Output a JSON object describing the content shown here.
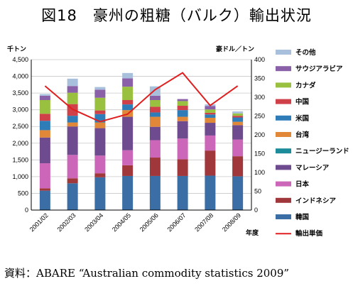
{
  "title": "図18　豪州の粗糖（バルク）輸出状況",
  "source": "資料：ABARE “Australian commodity statistics 2009”",
  "chart_data": {
    "type": "bar",
    "stacked": true,
    "categories": [
      "2001/02",
      "2002/03",
      "2003/04",
      "2004/05",
      "2005/06",
      "2006/07",
      "2007/08",
      "2008/09"
    ],
    "xlabel": "年度",
    "y_left_unit": "千トン",
    "y_right_unit": "豪ドル／トン",
    "ylim_left": [
      0,
      4500
    ],
    "ylim_right": [
      0,
      400
    ],
    "yticks_left": [
      "0",
      "500",
      "1,000",
      "1,500",
      "2,000",
      "2,500",
      "3,000",
      "3,500",
      "4,000",
      "4,500"
    ],
    "yticks_right": [
      "0",
      "50",
      "100",
      "150",
      "200",
      "250",
      "300",
      "350",
      "400"
    ],
    "grid": true,
    "legend_position": "right",
    "series": [
      {
        "name": "韓国",
        "color": "#3a6ea5",
        "values": [
          580,
          800,
          980,
          1020,
          1020,
          1020,
          1030,
          1010
        ]
      },
      {
        "name": "インドネシア",
        "color": "#a0373a",
        "values": [
          70,
          150,
          120,
          320,
          550,
          500,
          750,
          600
        ]
      },
      {
        "name": "日本",
        "color": "#cc66b8",
        "values": [
          750,
          700,
          530,
          450,
          520,
          620,
          450,
          500
        ]
      },
      {
        "name": "マレーシア",
        "color": "#6e4a8e",
        "values": [
          770,
          850,
          820,
          1000,
          400,
          520,
          380,
          430
        ]
      },
      {
        "name": "ニュージーランド",
        "color": "#1c8c9a",
        "values": [
          0,
          0,
          0,
          0,
          0,
          0,
          0,
          0
        ]
      },
      {
        "name": "台湾",
        "color": "#e08838",
        "values": [
          220,
          120,
          170,
          200,
          300,
          130,
          150,
          100
        ]
      },
      {
        "name": "米国",
        "color": "#2e7cb8",
        "values": [
          280,
          200,
          250,
          170,
          130,
          200,
          100,
          130
        ]
      },
      {
        "name": "中国",
        "color": "#d04048",
        "values": [
          210,
          350,
          110,
          130,
          170,
          130,
          50,
          50
        ]
      },
      {
        "name": "カナダ",
        "color": "#9ac040",
        "values": [
          410,
          340,
          380,
          400,
          200,
          140,
          100,
          70
        ]
      },
      {
        "name": "サウジアラビア",
        "color": "#8a60a8",
        "values": [
          130,
          200,
          240,
          250,
          130,
          60,
          100,
          0
        ]
      },
      {
        "name": "その他",
        "color": "#a8c0dc",
        "values": [
          50,
          220,
          80,
          160,
          280,
          0,
          50,
          60
        ]
      }
    ],
    "line_series": {
      "name": "輸出単価",
      "color": "#e02020",
      "axis": "right",
      "values": [
        330,
        268,
        235,
        255,
        320,
        365,
        278,
        330
      ]
    }
  }
}
